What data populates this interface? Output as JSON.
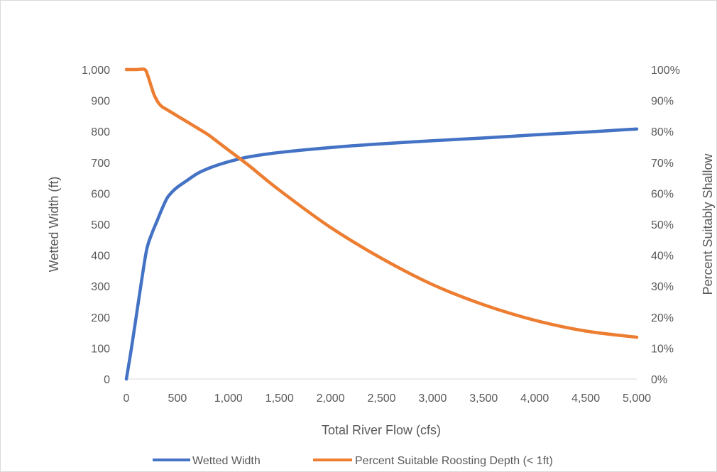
{
  "chart_data": {
    "type": "line",
    "title": "",
    "xlabel": "Total River Flow (cfs)",
    "ylabel": "Wetted Width (ft)",
    "y2label": "Percent Suitably Shallow",
    "xlim": [
      0,
      5000
    ],
    "ylim": [
      0,
      1000
    ],
    "y2lim": [
      0,
      1
    ],
    "x_ticks": [
      0,
      500,
      1000,
      1500,
      2000,
      2500,
      3000,
      3500,
      4000,
      4500,
      5000
    ],
    "x_tick_labels": [
      "0",
      "500",
      "1,000",
      "1,500",
      "2,000",
      "2,500",
      "3,000",
      "3,500",
      "4,000",
      "4,500",
      "5,000"
    ],
    "y_ticks": [
      0,
      100,
      200,
      300,
      400,
      500,
      600,
      700,
      800,
      900,
      1000
    ],
    "y_tick_labels": [
      "0",
      "100",
      "200",
      "300",
      "400",
      "500",
      "600",
      "700",
      "800",
      "900",
      "1,000"
    ],
    "y2_ticks": [
      0,
      0.1,
      0.2,
      0.3,
      0.4,
      0.5,
      0.6,
      0.7,
      0.8,
      0.9,
      1.0
    ],
    "y2_tick_labels": [
      "0%",
      "10%",
      "20%",
      "30%",
      "40%",
      "50%",
      "60%",
      "70%",
      "80%",
      "90%",
      "100%"
    ],
    "grid": false,
    "legend": "bottom",
    "series": [
      {
        "name": "Wetted Width",
        "axis": "left",
        "color": "#4472c4",
        "x": [
          0,
          50,
          100,
          150,
          200,
          250,
          300,
          350,
          400,
          450,
          500,
          600,
          700,
          800,
          900,
          1000,
          1200,
          1500,
          2000,
          2500,
          3000,
          3500,
          4000,
          4500,
          5000
        ],
        "y": [
          0,
          100,
          210,
          320,
          420,
          470,
          510,
          550,
          585,
          605,
          620,
          643,
          665,
          680,
          692,
          702,
          718,
          732,
          748,
          760,
          770,
          779,
          789,
          798,
          808
        ]
      },
      {
        "name": "Percent Suitable Roosting Depth (< 1ft)",
        "axis": "right",
        "color": "#ed7d31",
        "x": [
          0,
          100,
          180,
          210,
          240,
          270,
          300,
          320,
          350,
          400,
          500,
          600,
          700,
          800,
          900,
          1000,
          1200,
          1500,
          2000,
          2500,
          3000,
          3500,
          4000,
          4500,
          5000
        ],
        "y": [
          1.0,
          1.0,
          1.0,
          0.98,
          0.95,
          0.92,
          0.9,
          0.89,
          0.88,
          0.87,
          0.85,
          0.83,
          0.81,
          0.79,
          0.765,
          0.74,
          0.69,
          0.61,
          0.49,
          0.39,
          0.305,
          0.24,
          0.19,
          0.155,
          0.135
        ]
      }
    ]
  }
}
